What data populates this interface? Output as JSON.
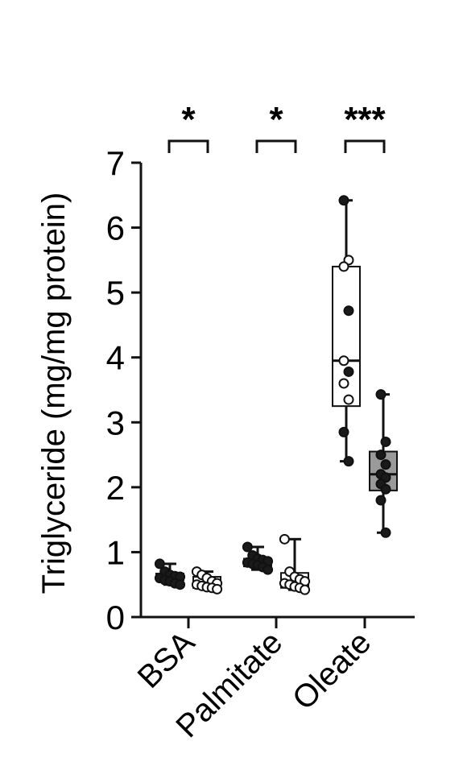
{
  "chart_data": {
    "type": "box",
    "ylabel": "Triglyceride (mg/mg protein)",
    "ylim": [
      0,
      7
    ],
    "yticks": [
      "0",
      "1",
      "2",
      "3",
      "4",
      "5",
      "6",
      "7"
    ],
    "categories": [
      "BSA",
      "Palmitate",
      "Oleate"
    ],
    "significance": [
      "*",
      "*",
      "***"
    ],
    "grid": false,
    "legend": "none",
    "colors": {
      "box_a": "#ffffff",
      "box_b_bsa": "#ffffff",
      "box_b_palmitate": "#ffffff",
      "box_b_oleate": "#9a9a9a",
      "stroke": "#111111"
    },
    "boxes": [
      {
        "category": "BSA",
        "group": "a",
        "min": 0.5,
        "q1": 0.57,
        "median": 0.62,
        "q3": 0.67,
        "max": 0.82,
        "points": [
          0.82,
          0.7,
          0.65,
          0.63,
          0.62,
          0.6,
          0.57,
          0.55,
          0.52,
          0.5
        ],
        "point_fill": "dark"
      },
      {
        "category": "BSA",
        "group": "b",
        "min": 0.43,
        "q1": 0.45,
        "median": 0.5,
        "q3": 0.62,
        "max": 0.7,
        "points": [
          0.7,
          0.65,
          0.6,
          0.55,
          0.52,
          0.5,
          0.48,
          0.46,
          0.45,
          0.43
        ],
        "point_fill": "open"
      },
      {
        "category": "Palmitate",
        "group": "a",
        "min": 0.73,
        "q1": 0.78,
        "median": 0.85,
        "q3": 0.9,
        "max": 1.08,
        "points": [
          1.08,
          0.95,
          0.9,
          0.88,
          0.86,
          0.84,
          0.82,
          0.8,
          0.77,
          0.73
        ],
        "point_fill": "dark"
      },
      {
        "category": "Palmitate",
        "group": "b",
        "min": 0.42,
        "q1": 0.45,
        "median": 0.55,
        "q3": 0.68,
        "max": 1.2,
        "points": [
          1.2,
          0.7,
          0.62,
          0.58,
          0.55,
          0.52,
          0.5,
          0.47,
          0.45,
          0.42
        ],
        "point_fill": "open"
      },
      {
        "category": "Oleate",
        "group": "a",
        "min": 2.4,
        "q1": 3.25,
        "median": 3.95,
        "q3": 5.4,
        "max": 6.42,
        "points": [
          6.42,
          5.5,
          5.4,
          4.72,
          3.95,
          3.78,
          3.6,
          3.35,
          2.85,
          2.4
        ],
        "point_fill": "mixed"
      },
      {
        "category": "Oleate",
        "group": "b",
        "min": 1.3,
        "q1": 1.95,
        "median": 2.2,
        "q3": 2.55,
        "max": 3.43,
        "points": [
          3.43,
          2.7,
          2.5,
          2.35,
          2.2,
          2.15,
          2.05,
          1.97,
          1.8,
          1.3
        ],
        "point_fill": "dark"
      }
    ]
  }
}
